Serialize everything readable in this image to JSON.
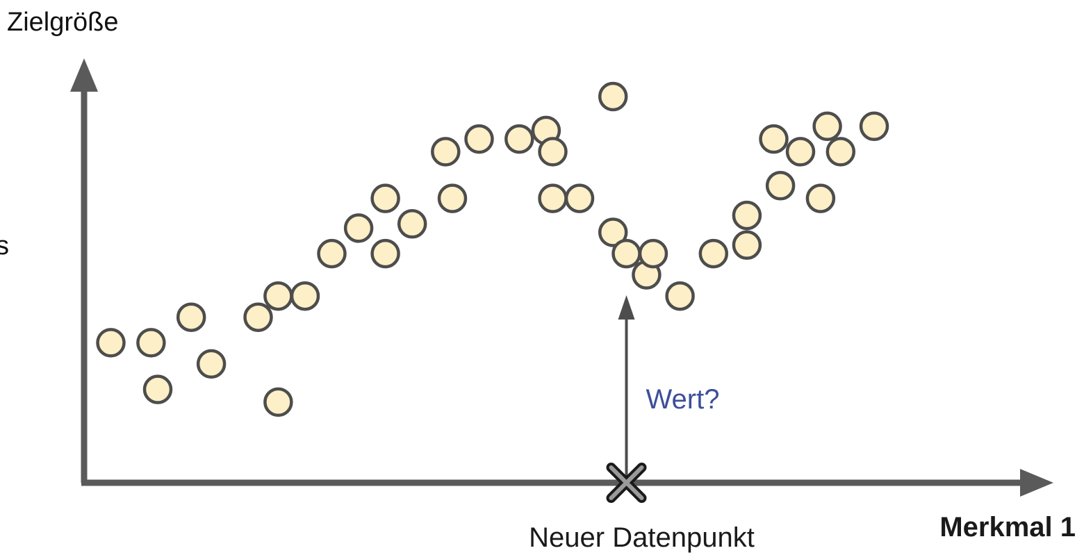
{
  "chart_data": {
    "type": "scatter",
    "ylabel": "Zielgröße",
    "xlabel": "Merkmal 1",
    "side_fragment": "s",
    "new_point": {
      "x": 8.1,
      "label": "Neuer Datenpunkt",
      "query_label": "Wert?"
    },
    "xlim": [
      0,
      14
    ],
    "ylim": [
      0,
      10
    ],
    "grid": false,
    "legend": "none",
    "points": [
      {
        "x": 0.4,
        "y": 3.3
      },
      {
        "x": 1.0,
        "y": 3.3
      },
      {
        "x": 1.1,
        "y": 2.2
      },
      {
        "x": 1.6,
        "y": 3.9
      },
      {
        "x": 1.9,
        "y": 2.8
      },
      {
        "x": 2.6,
        "y": 3.9
      },
      {
        "x": 2.9,
        "y": 4.4
      },
      {
        "x": 2.9,
        "y": 1.9
      },
      {
        "x": 3.3,
        "y": 4.4
      },
      {
        "x": 3.7,
        "y": 5.4
      },
      {
        "x": 4.1,
        "y": 6.0
      },
      {
        "x": 4.5,
        "y": 6.7
      },
      {
        "x": 4.5,
        "y": 5.4
      },
      {
        "x": 4.9,
        "y": 6.1
      },
      {
        "x": 5.4,
        "y": 7.8
      },
      {
        "x": 5.5,
        "y": 6.7
      },
      {
        "x": 5.9,
        "y": 8.1
      },
      {
        "x": 6.5,
        "y": 8.1
      },
      {
        "x": 6.9,
        "y": 8.3
      },
      {
        "x": 7.0,
        "y": 7.8
      },
      {
        "x": 7.0,
        "y": 6.7
      },
      {
        "x": 7.4,
        "y": 6.7
      },
      {
        "x": 7.9,
        "y": 9.1
      },
      {
        "x": 7.9,
        "y": 5.9
      },
      {
        "x": 8.1,
        "y": 5.4
      },
      {
        "x": 8.4,
        "y": 4.9
      },
      {
        "x": 8.5,
        "y": 5.4
      },
      {
        "x": 8.9,
        "y": 4.4
      },
      {
        "x": 9.4,
        "y": 5.4
      },
      {
        "x": 9.9,
        "y": 6.3
      },
      {
        "x": 9.9,
        "y": 5.6
      },
      {
        "x": 10.3,
        "y": 8.1
      },
      {
        "x": 10.4,
        "y": 7.0
      },
      {
        "x": 10.7,
        "y": 7.8
      },
      {
        "x": 11.0,
        "y": 6.7
      },
      {
        "x": 11.1,
        "y": 8.4
      },
      {
        "x": 11.3,
        "y": 7.8
      },
      {
        "x": 11.8,
        "y": 8.4
      }
    ]
  },
  "colors": {
    "axis": "#5a5a5a",
    "point_fill": "#fdefc7",
    "point_stroke": "#4d4d4d",
    "query_arrow": "#4d4d4d",
    "query_text": "#3d4f9a",
    "marker": "#1a1a1a"
  }
}
